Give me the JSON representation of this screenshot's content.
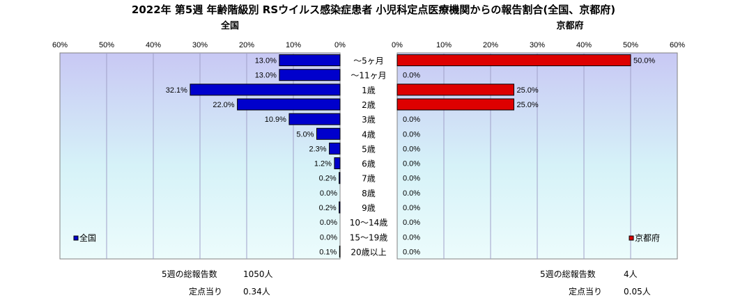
{
  "title": "2022年 第5週 年齢階級別 RSウイルス感染症患者 小児科定点医療機関からの報告割合(全国、京都府)",
  "chart_data": {
    "type": "bar",
    "categories": [
      "～5ヶ月",
      "～11ヶ月",
      "1歳",
      "2歳",
      "3歳",
      "4歳",
      "5歳",
      "6歳",
      "7歳",
      "8歳",
      "9歳",
      "10～14歳",
      "15～19歳",
      "20歳以上"
    ],
    "xlim": [
      0,
      60
    ],
    "ticks": [
      "0%",
      "10%",
      "20%",
      "30%",
      "40%",
      "50%",
      "60%"
    ],
    "series": [
      {
        "name": "全国",
        "subtitle": "全国",
        "color": "#0000cc",
        "values": [
          13.0,
          13.0,
          32.1,
          22.0,
          10.9,
          5.0,
          2.3,
          1.2,
          0.2,
          0.0,
          0.2,
          0.0,
          0.0,
          0.1
        ],
        "labels": [
          "13.0%",
          "13.0%",
          "32.1%",
          "22.0%",
          "10.9%",
          "5.0%",
          "2.3%",
          "1.2%",
          "0.2%",
          "0.0%",
          "0.2%",
          "0.0%",
          "0.0%",
          "0.1%"
        ]
      },
      {
        "name": "京都府",
        "subtitle": "京都府",
        "color": "#dd0000",
        "values": [
          50.0,
          0.0,
          25.0,
          25.0,
          0.0,
          0.0,
          0.0,
          0.0,
          0.0,
          0.0,
          0.0,
          0.0,
          0.0,
          0.0
        ],
        "labels": [
          "50.0%",
          "0.0%",
          "25.0%",
          "25.0%",
          "0.0%",
          "0.0%",
          "0.0%",
          "0.0%",
          "0.0%",
          "0.0%",
          "0.0%",
          "0.0%",
          "0.0%",
          "0.0%"
        ]
      }
    ],
    "grid": true,
    "legend": "bottom-left / bottom-right"
  },
  "footer": {
    "left": {
      "total_label": "5週の総報告数",
      "total_value": "1050人",
      "per_label": "定点当り",
      "per_value": "0.34人"
    },
    "right": {
      "total_label": "5週の総報告数",
      "total_value": "4人",
      "per_label": "定点当り",
      "per_value": "0.05人"
    }
  }
}
